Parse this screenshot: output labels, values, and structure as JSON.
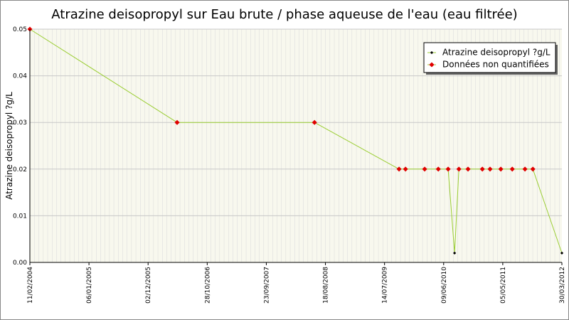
{
  "chart_data": {
    "type": "line",
    "title": "Atrazine deisopropyl sur Eau brute / phase aqueuse de l'eau (eau filtrée)",
    "y_label": "Atrazine deisopropyl ?g/L",
    "x": [
      "11/02/2004",
      "13/05/2006",
      "18/06/2008",
      "03/10/2009",
      "08/11/2009",
      "23/02/2010",
      "10/05/2010",
      "04/07/2010",
      "09/08/2010",
      "02/09/2010",
      "23/10/2010",
      "11/01/2011",
      "23/02/2011",
      "24/04/2011",
      "27/06/2011",
      "06/09/2011",
      "20/10/2011",
      "30/03/2012"
    ],
    "line_color": "#9acd32",
    "series": [
      {
        "name": "Atrazine deisopropyl ?g/L",
        "color": "#000000",
        "values": [
          null,
          null,
          null,
          null,
          null,
          null,
          null,
          null,
          0.002,
          null,
          null,
          null,
          null,
          null,
          null,
          null,
          null,
          0.002
        ]
      },
      {
        "name": "Données non quantifiées",
        "color": "#e00000",
        "values": [
          0.05,
          0.03,
          0.03,
          0.02,
          0.02,
          0.02,
          0.02,
          0.02,
          null,
          0.02,
          0.02,
          0.02,
          0.02,
          0.02,
          0.02,
          0.02,
          0.02,
          null
        ]
      }
    ],
    "xlim": [
      "11/02/2004",
      "30/03/2012"
    ],
    "xticks": [
      "11/02/2004",
      "06/01/2005",
      "02/12/2005",
      "28/10/2006",
      "23/09/2007",
      "18/08/2008",
      "14/07/2009",
      "09/06/2010",
      "05/05/2011",
      "30/03/2012"
    ],
    "ylim": [
      0,
      0.05
    ],
    "yticks": [
      {
        "value": 0,
        "label": "0.00"
      },
      0.01,
      0.02,
      0.03,
      0.04,
      0.05
    ],
    "grid": true,
    "legend": "top-right"
  }
}
